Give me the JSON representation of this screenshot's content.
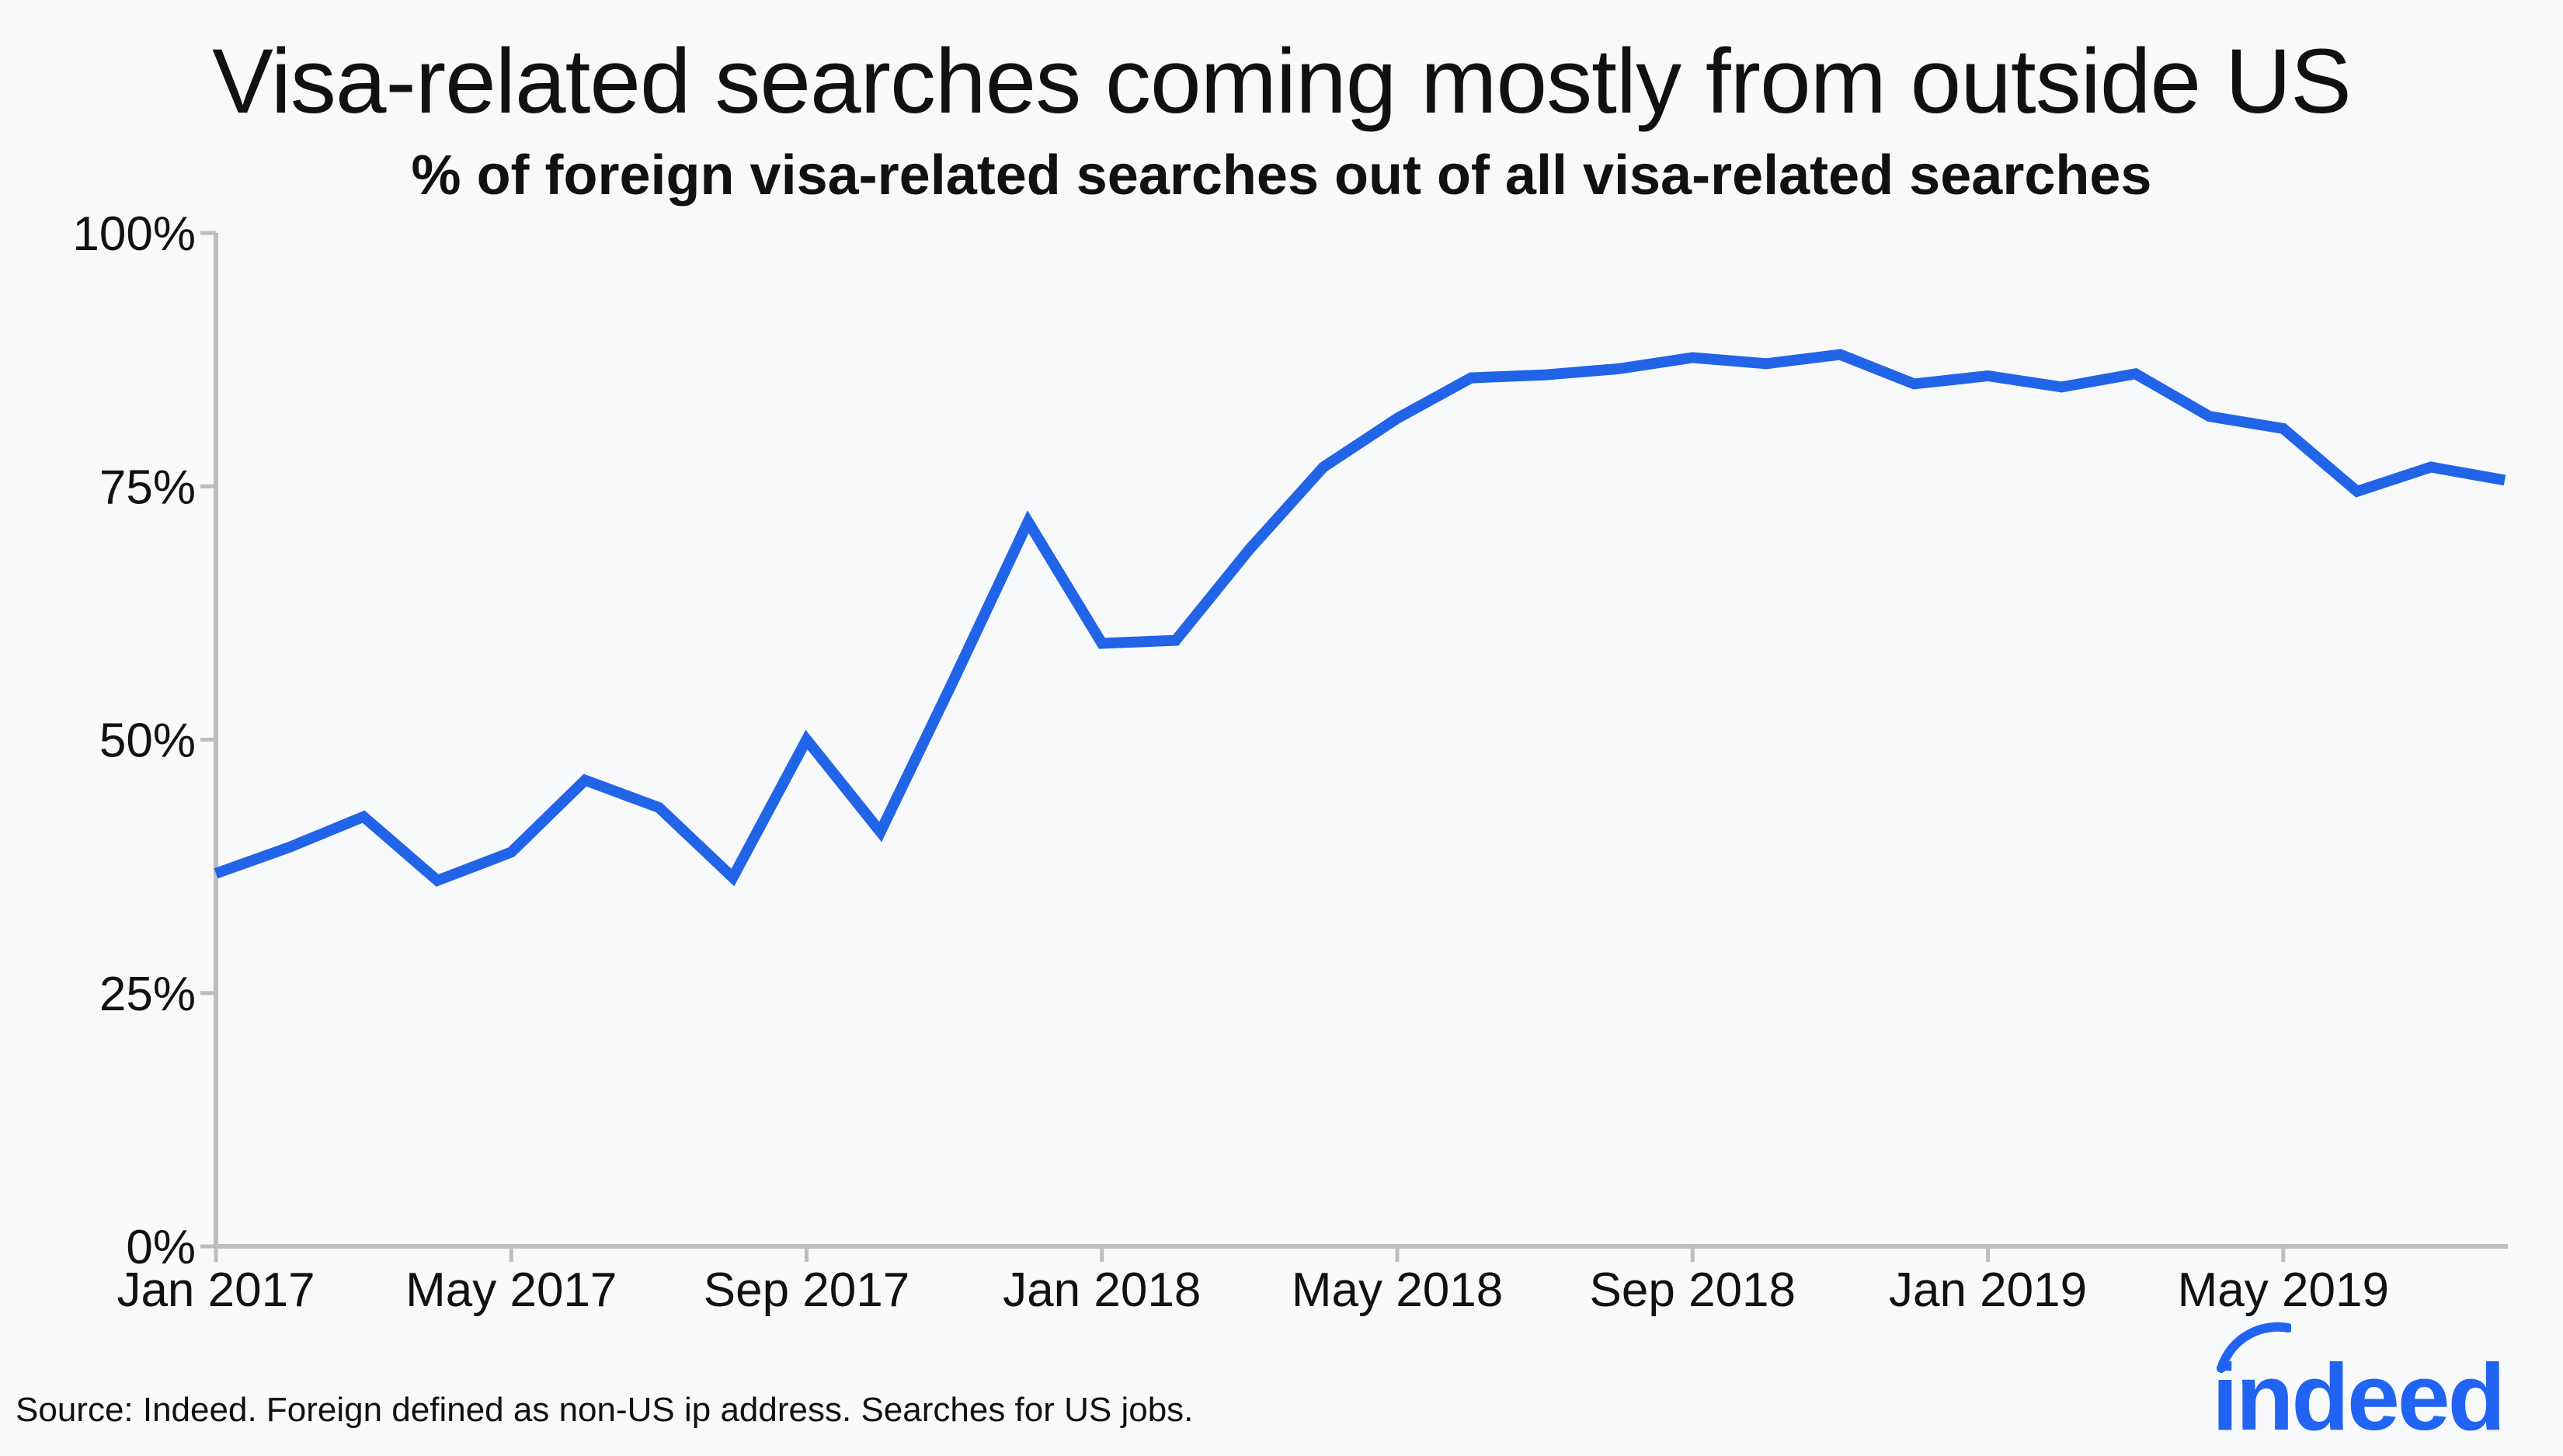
{
  "chart_data": {
    "type": "line",
    "title": "Visa-related searches coming mostly from outside US",
    "subtitle": "% of foreign visa-related searches out of all visa-related searches",
    "xlabel": "",
    "ylabel": "",
    "ylim": [
      0,
      100
    ],
    "yticks": [
      0,
      25,
      50,
      75,
      100
    ],
    "ytick_labels": [
      "0%",
      "25%",
      "50%",
      "75%",
      "100%"
    ],
    "x": [
      "2017-01",
      "2017-02",
      "2017-03",
      "2017-04",
      "2017-05",
      "2017-06",
      "2017-07",
      "2017-08",
      "2017-09",
      "2017-10",
      "2017-11",
      "2017-12",
      "2018-01",
      "2018-02",
      "2018-03",
      "2018-04",
      "2018-05",
      "2018-06",
      "2018-07",
      "2018-08",
      "2018-09",
      "2018-10",
      "2018-11",
      "2018-12",
      "2019-01",
      "2019-02",
      "2019-03",
      "2019-04",
      "2019-05",
      "2019-06",
      "2019-07",
      "2019-08"
    ],
    "xticks": [
      "2017-01",
      "2017-05",
      "2017-09",
      "2018-01",
      "2018-05",
      "2018-09",
      "2019-01",
      "2019-05"
    ],
    "xtick_labels": [
      "Jan 2017",
      "May 2017",
      "Sep 2017",
      "Jan 2018",
      "May 2018",
      "Sep 2018",
      "Jan 2019",
      "May 2019"
    ],
    "series": [
      {
        "name": "",
        "color": "#2164e8",
        "values": [
          36.8,
          39.4,
          42.4,
          36.1,
          38.9,
          46.0,
          43.3,
          36.4,
          50.0,
          40.9,
          56.0,
          71.5,
          59.5,
          59.8,
          68.8,
          76.9,
          81.7,
          85.7,
          86.0,
          86.6,
          87.7,
          87.1,
          88.0,
          85.1,
          85.9,
          84.8,
          86.1,
          81.9,
          80.7,
          74.5,
          76.9,
          75.6
        ]
      }
    ],
    "grid": false,
    "legend": "none"
  },
  "footer": {
    "source": "Source: Indeed. Foreign defined as non-US ip address. Searches for US jobs.",
    "logo_text": "indeed",
    "logo_color": "#2164f3"
  }
}
